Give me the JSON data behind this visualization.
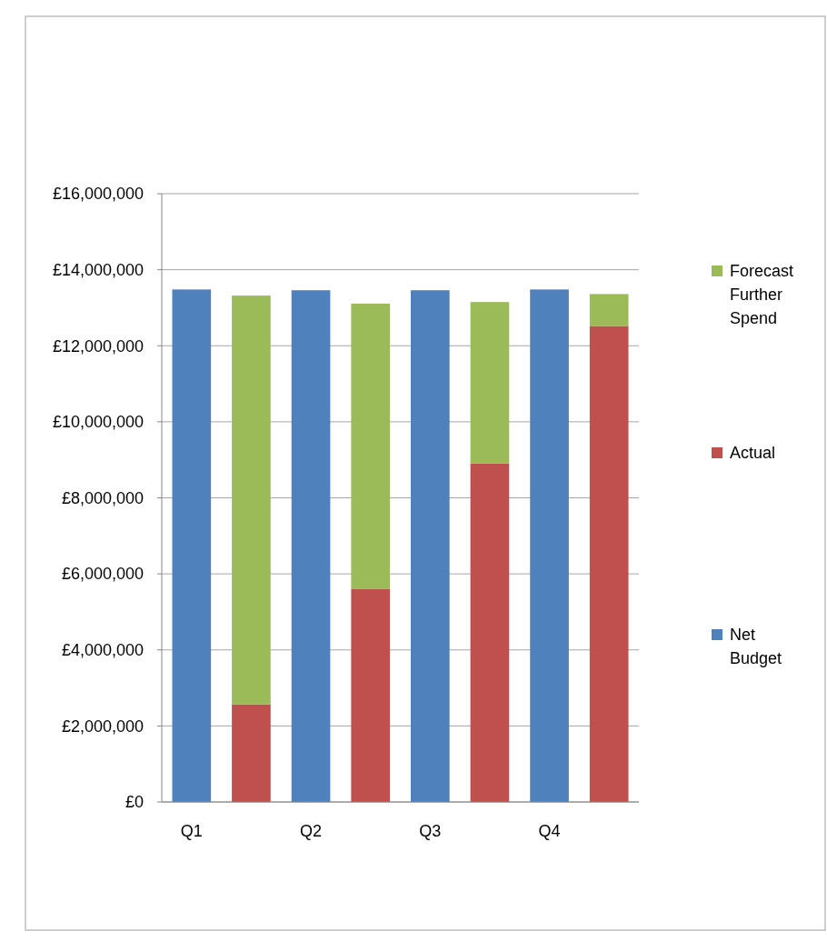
{
  "chart_data": {
    "type": "bar",
    "stacked": true,
    "categories": [
      "Q1",
      null,
      "Q2",
      null,
      "Q3",
      null,
      "Q4",
      null
    ],
    "series": [
      {
        "name": "Net Budget",
        "color": "#4f81bd",
        "values": [
          13480000,
          null,
          13460000,
          null,
          13460000,
          null,
          13480000,
          null
        ]
      },
      {
        "name": "Actual",
        "color": "#c0504d",
        "values": [
          null,
          2570000,
          null,
          5610000,
          null,
          8900000,
          null,
          12520000
        ]
      },
      {
        "name": "Forecast Further Spend",
        "color": "#9bbb59",
        "values": [
          null,
          10750000,
          null,
          7500000,
          null,
          4250000,
          null,
          840000
        ]
      }
    ],
    "ylim": [
      0,
      16000000
    ],
    "yticks": [
      {
        "value": 0,
        "label": "£0"
      },
      {
        "value": 2000000,
        "label": "£2,000,000"
      },
      {
        "value": 4000000,
        "label": "£4,000,000"
      },
      {
        "value": 6000000,
        "label": "£6,000,000"
      },
      {
        "value": 8000000,
        "label": "£8,000,000"
      },
      {
        "value": 10000000,
        "label": "£10,000,000"
      },
      {
        "value": 12000000,
        "label": "£12,000,000"
      },
      {
        "value": 14000000,
        "label": "£14,000,000"
      },
      {
        "value": 16000000,
        "label": "£16,000,000"
      }
    ],
    "grid": "y",
    "legend": "right"
  }
}
